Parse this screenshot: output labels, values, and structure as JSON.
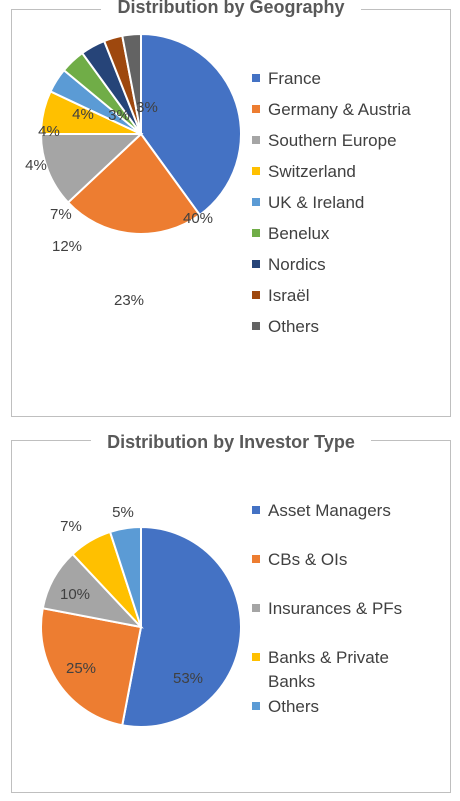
{
  "chart_data": [
    {
      "type": "pie",
      "title": "Distribution by Geography",
      "legend_position": "right",
      "slices": [
        {
          "label": "France",
          "value": 40,
          "text": "40%",
          "color": "#4472C4"
        },
        {
          "label": "Germany & Austria",
          "value": 23,
          "text": "23%",
          "color": "#ED7D31"
        },
        {
          "label": "Southern Europe",
          "value": 12,
          "text": "12%",
          "color": "#A5A5A5"
        },
        {
          "label": "Switzerland",
          "value": 7,
          "text": "7%",
          "color": "#FFC000"
        },
        {
          "label": "UK & Ireland",
          "value": 4,
          "text": "4%",
          "color": "#5B9BD5"
        },
        {
          "label": "Benelux",
          "value": 4,
          "text": "4%",
          "color": "#70AD47"
        },
        {
          "label": "Nordics",
          "value": 4,
          "text": "4%",
          "color": "#264478"
        },
        {
          "label": "Israël",
          "value": 3,
          "text": "3%",
          "color": "#9E480E"
        },
        {
          "label": "Others",
          "value": 3,
          "text": "3%",
          "color": "#636363"
        }
      ]
    },
    {
      "type": "pie",
      "title": "Distribution by Investor Type",
      "legend_position": "right",
      "slices": [
        {
          "label": "Asset Managers",
          "value": 53,
          "text": "53%",
          "color": "#4472C4"
        },
        {
          "label": "CBs & OIs",
          "value": 25,
          "text": "25%",
          "color": "#ED7D31"
        },
        {
          "label": "Insurances & PFs",
          "value": 10,
          "text": "10%",
          "color": "#A5A5A5"
        },
        {
          "label": [
            "Banks & Private",
            "Banks"
          ],
          "value": 7,
          "text": "7%",
          "color": "#FFC000"
        },
        {
          "label": "Others",
          "value": 5,
          "text": "5%",
          "color": "#5B9BD5"
        }
      ]
    }
  ]
}
